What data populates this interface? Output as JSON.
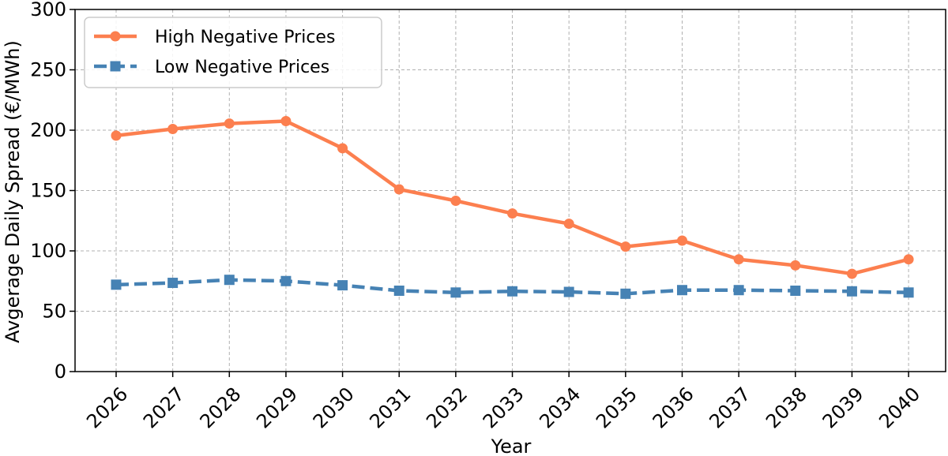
{
  "chart_data": {
    "type": "line",
    "title": "",
    "xlabel": "Year",
    "ylabel": "Avgerage Daily Spread (€/MWh)",
    "categories": [
      "2026",
      "2027",
      "2028",
      "2029",
      "2030",
      "2031",
      "2032",
      "2033",
      "2034",
      "2035",
      "2036",
      "2037",
      "2038",
      "2039",
      "2040"
    ],
    "ylim": [
      0,
      300
    ],
    "yticks": [
      0,
      50,
      100,
      150,
      200,
      250,
      300
    ],
    "grid": true,
    "legend_position": "top-left",
    "series": [
      {
        "name": "High Negative Prices",
        "color": "#fc7f4f",
        "marker": "circle",
        "line_style": "solid",
        "values": [
          195.5,
          201,
          205.5,
          207.5,
          185,
          151,
          141.5,
          131,
          122.5,
          103.5,
          108.5,
          93,
          88,
          81,
          93
        ]
      },
      {
        "name": "Low Negative Prices",
        "color": "#4682b4",
        "marker": "square",
        "line_style": "dashed",
        "values": [
          72,
          73.5,
          76,
          75,
          71.5,
          67,
          65.5,
          66.5,
          66,
          64.5,
          67.5,
          67.5,
          67,
          66.5,
          65.5
        ]
      }
    ]
  }
}
